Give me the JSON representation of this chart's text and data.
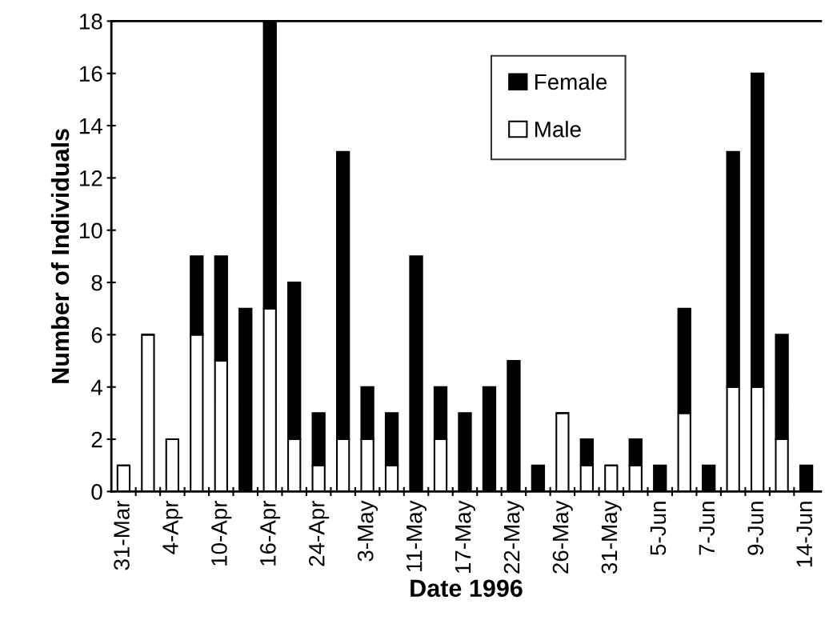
{
  "chart_data": {
    "type": "bar",
    "stacked": true,
    "xlabel": "Date 1996",
    "ylabel": "Number of Individuals",
    "categories": [
      "31-Mar",
      null,
      "4-Apr",
      null,
      "10-Apr",
      null,
      "16-Apr",
      null,
      "24-Apr",
      null,
      "3-May",
      null,
      "11-May",
      null,
      "17-May",
      null,
      "22-May",
      null,
      "26-May",
      null,
      "31-May",
      null,
      "5-Jun",
      null,
      "7-Jun",
      null,
      "9-Jun",
      null,
      "14-Jun"
    ],
    "series": [
      {
        "name": "Male",
        "color": "#ffffff",
        "values": [
          1,
          6,
          2,
          6,
          5,
          0,
          7,
          2,
          1,
          2,
          2,
          1,
          0,
          2,
          0,
          0,
          0,
          0,
          3,
          1,
          1,
          1,
          0,
          3,
          0,
          4,
          4,
          2,
          0
        ]
      },
      {
        "name": "Female",
        "color": "#000000",
        "values": [
          0,
          0,
          0,
          3,
          4,
          7,
          11,
          6,
          2,
          11,
          2,
          2,
          9,
          2,
          3,
          4,
          5,
          1,
          0,
          1,
          0,
          1,
          1,
          4,
          1,
          9,
          12,
          4,
          1
        ]
      }
    ],
    "ylim": [
      0,
      18
    ],
    "yticks": [
      0,
      2,
      4,
      6,
      8,
      10,
      12,
      14,
      16,
      18
    ],
    "grid": false,
    "legend": "top"
  }
}
